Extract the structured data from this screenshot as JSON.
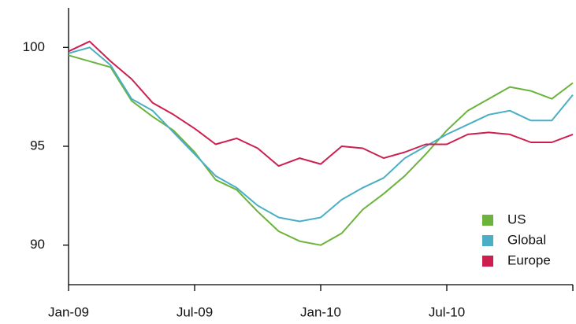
{
  "chart_data": {
    "type": "line",
    "categories": [
      "Jan-09",
      null,
      null,
      null,
      null,
      null,
      "Jul-09",
      null,
      null,
      null,
      null,
      null,
      "Jan-10",
      null,
      null,
      null,
      null,
      null,
      "Jul-10",
      null,
      null,
      null,
      null,
      null,
      null
    ],
    "series": [
      {
        "name": "US",
        "color": "#6bb33b",
        "values": [
          99.6,
          99.3,
          99.0,
          97.3,
          96.5,
          95.8,
          94.7,
          93.3,
          92.8,
          91.7,
          90.7,
          90.2,
          90.0,
          90.6,
          91.8,
          92.6,
          93.5,
          94.6,
          95.8,
          96.8,
          97.4,
          98.0,
          97.8,
          97.4,
          98.2
        ]
      },
      {
        "name": "Global",
        "color": "#4aaec4",
        "values": [
          99.7,
          100.0,
          99.1,
          97.4,
          96.8,
          95.7,
          94.6,
          93.5,
          92.9,
          92.0,
          91.4,
          91.2,
          91.4,
          92.3,
          92.9,
          93.4,
          94.4,
          95.0,
          95.6,
          96.1,
          96.6,
          96.8,
          96.3,
          96.3,
          97.6
        ]
      },
      {
        "name": "Europe",
        "color": "#cc1f4f",
        "values": [
          99.8,
          100.3,
          99.3,
          98.4,
          97.2,
          96.6,
          95.9,
          95.1,
          95.4,
          94.9,
          94.0,
          94.4,
          94.1,
          95.0,
          94.9,
          94.4,
          94.7,
          95.1,
          95.1,
          95.6,
          95.7,
          95.6,
          95.2,
          95.2,
          95.6
        ]
      }
    ],
    "ylim": [
      88,
      102
    ],
    "yticks": [
      90,
      95,
      100
    ],
    "grid": false,
    "legend": "lower right"
  }
}
